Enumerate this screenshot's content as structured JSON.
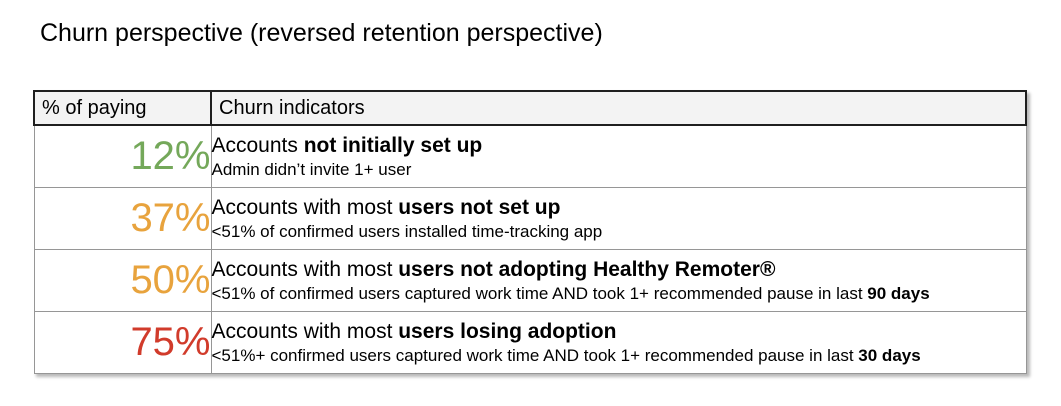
{
  "title": "Churn perspective (reversed retention perspective)",
  "table": {
    "headers": {
      "percent": "% of paying",
      "indicators": "Churn indicators"
    },
    "rows": [
      {
        "percent": "12%",
        "color": "#74a85a",
        "main": {
          "pre": "Accounts ",
          "bold": "not initially set up",
          "post": ""
        },
        "sub": {
          "pre": "Admin didn’t invite 1+ user",
          "bold": ""
        }
      },
      {
        "percent": "37%",
        "color": "#e8a33d",
        "main": {
          "pre": "Accounts with most ",
          "bold": "users not set up",
          "post": ""
        },
        "sub": {
          "pre": "<51% of confirmed users installed time-tracking app",
          "bold": ""
        }
      },
      {
        "percent": "50%",
        "color": "#e8a33d",
        "main": {
          "pre": "Accounts with most ",
          "bold": "users not adopting Healthy Remoter®",
          "post": ""
        },
        "sub": {
          "pre": "<51% of confirmed users captured work time AND took 1+ recommended pause in last ",
          "bold": "90 days"
        }
      },
      {
        "percent": "75%",
        "color": "#d13b2b",
        "main": {
          "pre": "Accounts with most ",
          "bold": "users losing adoption",
          "post": ""
        },
        "sub": {
          "pre": "<51%+ confirmed users captured work time AND took 1+ recommended pause in last ",
          "bold": "30 days"
        }
      }
    ]
  }
}
